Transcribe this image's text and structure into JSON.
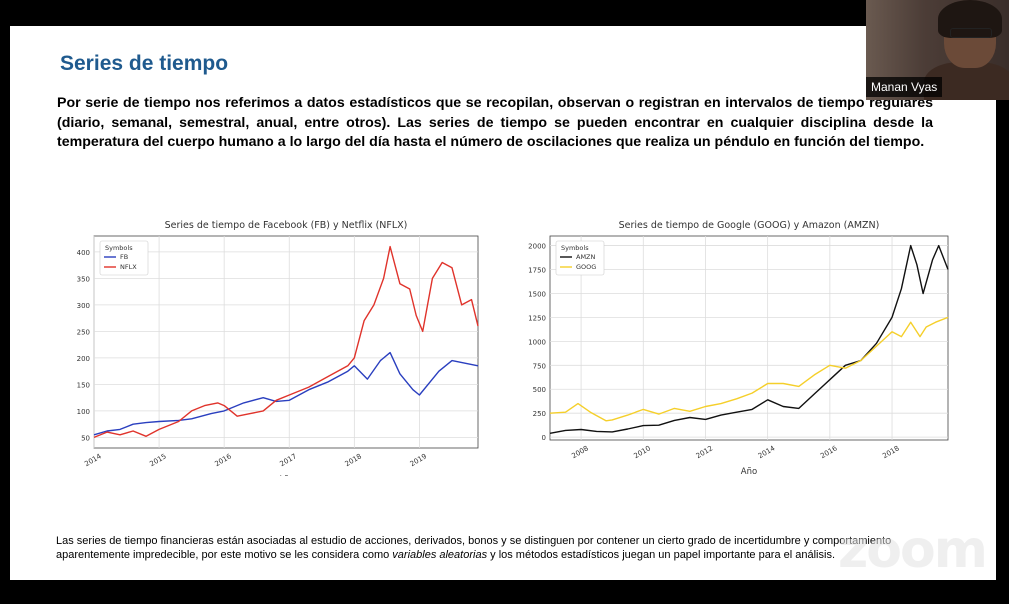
{
  "slide": {
    "title": "Series de tiempo",
    "intro": "Por serie de tiempo nos referimos a datos estadísticos que se recopilan, observan o registran en intervalos de tiempo regulares (diario, semanal, semestral, anual, entre otros). Las series de tiempo se pueden encontrar en cualquier disciplina desde la temperatura del cuerpo humano a lo largo del día hasta el número de oscilaciones que realiza un péndulo en función del tiempo.",
    "footer_a": "Las series de tiempo financieras están asociadas al estudio de acciones, derivados, bonos y se distinguen por contener un cierto grado de incertidumbre y comportamiento aparentemente impredecible, por este motivo se les considera como ",
    "footer_italic": "variables aleatorias",
    "footer_b": " y los métodos estadísticos juegan un papel importante para el análisis."
  },
  "webcam": {
    "participant_name": "Manan Vyas"
  },
  "watermark": "zoom",
  "colors": {
    "title": "#1f5a8e",
    "fb": "#2a3fbf",
    "nflx": "#e0332b",
    "amzn": "#111111",
    "goog": "#f5cf2a"
  },
  "chart_data": [
    {
      "type": "line",
      "title": "Series de tiempo de Facebook (FB) y Netflix (NFLX)",
      "xlabel": "Año",
      "ylabel": "",
      "legend_title": "Symbols",
      "legend_position": "top-left",
      "grid": true,
      "xlim": [
        2014.0,
        2019.9
      ],
      "ylim": [
        30,
        430
      ],
      "xticks": [
        "2014",
        "2015",
        "2016",
        "2017",
        "2018",
        "2019"
      ],
      "yticks": [
        50,
        100,
        150,
        200,
        250,
        300,
        350,
        400
      ],
      "series": [
        {
          "name": "FB",
          "color": "#2a3fbf",
          "x": [
            2014.0,
            2014.2,
            2014.4,
            2014.6,
            2014.8,
            2015.0,
            2015.3,
            2015.5,
            2015.8,
            2016.0,
            2016.3,
            2016.6,
            2016.8,
            2017.0,
            2017.3,
            2017.6,
            2017.9,
            2018.0,
            2018.2,
            2018.4,
            2018.55,
            2018.7,
            2018.9,
            2019.0,
            2019.3,
            2019.5,
            2019.7,
            2019.9
          ],
          "y": [
            55,
            62,
            65,
            75,
            78,
            80,
            82,
            85,
            95,
            100,
            115,
            125,
            118,
            120,
            140,
            155,
            175,
            185,
            160,
            195,
            210,
            170,
            140,
            130,
            175,
            195,
            190,
            185
          ]
        },
        {
          "name": "NFLX",
          "color": "#e0332b",
          "x": [
            2014.0,
            2014.2,
            2014.4,
            2014.6,
            2014.8,
            2015.0,
            2015.3,
            2015.5,
            2015.7,
            2015.9,
            2016.0,
            2016.2,
            2016.4,
            2016.6,
            2016.8,
            2017.0,
            2017.3,
            2017.6,
            2017.9,
            2018.0,
            2018.15,
            2018.3,
            2018.45,
            2018.55,
            2018.7,
            2018.85,
            2018.95,
            2019.05,
            2019.2,
            2019.35,
            2019.5,
            2019.65,
            2019.8,
            2019.9
          ],
          "y": [
            50,
            60,
            55,
            62,
            52,
            65,
            80,
            100,
            110,
            115,
            110,
            90,
            95,
            100,
            120,
            130,
            145,
            165,
            185,
            200,
            270,
            300,
            350,
            410,
            340,
            330,
            280,
            250,
            350,
            380,
            370,
            300,
            310,
            260
          ]
        }
      ]
    },
    {
      "type": "line",
      "title": "Series de tiempo de Google (GOOG) y Amazon (AMZN)",
      "xlabel": "Año",
      "ylabel": "",
      "legend_title": "Symbols",
      "legend_position": "top-left",
      "grid": true,
      "xlim": [
        2007.0,
        2019.8
      ],
      "ylim": [
        -30,
        2100
      ],
      "xticks": [
        "2008",
        "2010",
        "2012",
        "2014",
        "2016",
        "2018"
      ],
      "yticks": [
        0,
        250,
        500,
        750,
        1000,
        1250,
        1500,
        1750,
        2000
      ],
      "series": [
        {
          "name": "AMZN",
          "color": "#111111",
          "x": [
            2007.0,
            2007.5,
            2008.0,
            2008.5,
            2009.0,
            2009.5,
            2010.0,
            2010.5,
            2011.0,
            2011.5,
            2012.0,
            2012.5,
            2013.0,
            2013.5,
            2014.0,
            2014.5,
            2015.0,
            2015.5,
            2016.0,
            2016.5,
            2017.0,
            2017.5,
            2018.0,
            2018.3,
            2018.6,
            2018.8,
            2019.0,
            2019.3,
            2019.5,
            2019.8
          ],
          "y": [
            40,
            70,
            80,
            60,
            55,
            85,
            120,
            125,
            175,
            205,
            185,
            230,
            260,
            290,
            390,
            320,
            300,
            450,
            600,
            750,
            800,
            980,
            1250,
            1550,
            2000,
            1800,
            1500,
            1850,
            2000,
            1750
          ]
        },
        {
          "name": "GOOG",
          "color": "#f5cf2a",
          "x": [
            2007.0,
            2007.5,
            2007.9,
            2008.3,
            2008.8,
            2009.0,
            2009.5,
            2010.0,
            2010.5,
            2011.0,
            2011.5,
            2012.0,
            2012.5,
            2013.0,
            2013.5,
            2014.0,
            2014.5,
            2015.0,
            2015.5,
            2016.0,
            2016.5,
            2017.0,
            2017.5,
            2018.0,
            2018.3,
            2018.6,
            2018.9,
            2019.1,
            2019.4,
            2019.8
          ],
          "y": [
            250,
            260,
            350,
            260,
            170,
            180,
            230,
            290,
            240,
            300,
            270,
            320,
            350,
            400,
            460,
            560,
            560,
            530,
            650,
            750,
            720,
            800,
            950,
            1100,
            1050,
            1200,
            1050,
            1150,
            1200,
            1250
          ]
        }
      ]
    }
  ]
}
